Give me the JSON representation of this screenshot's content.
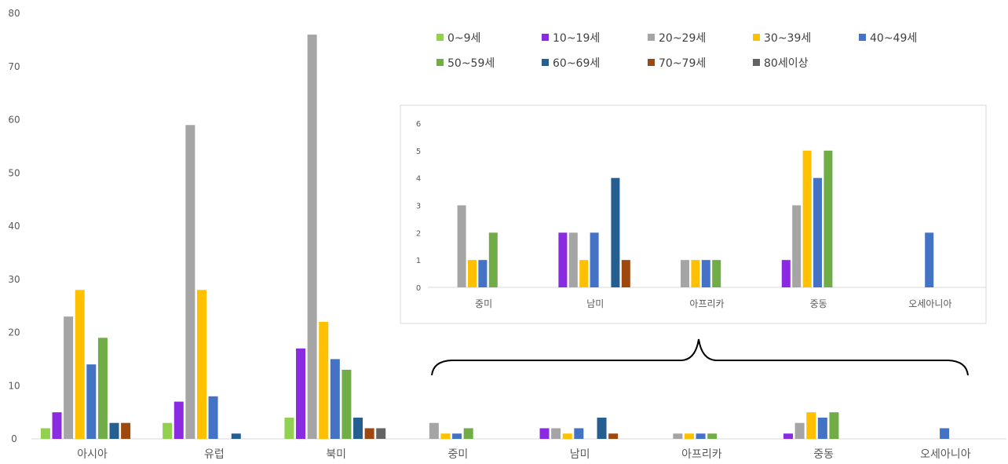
{
  "chart_data": [
    {
      "type": "bar",
      "ylim": [
        0,
        80
      ],
      "yticks": [
        "0",
        "10",
        "20",
        "30",
        "40",
        "50",
        "60",
        "70",
        "80"
      ],
      "categories": [
        "아시아",
        "유럽",
        "북미",
        "중미",
        "남미",
        "아프리카",
        "중동",
        "오세아니아"
      ],
      "grid": false,
      "legend_position": "top-right",
      "series": [
        {
          "name": "0~9세",
          "color": "#92d050",
          "values": [
            2,
            3,
            4,
            0,
            0,
            0,
            0,
            0
          ]
        },
        {
          "name": "10~19세",
          "color": "#8a2be2",
          "values": [
            5,
            7,
            17,
            0,
            2,
            0,
            1,
            0
          ]
        },
        {
          "name": "20~29세",
          "color": "#a5a5a5",
          "values": [
            23,
            59,
            76,
            3,
            2,
            1,
            3,
            0
          ]
        },
        {
          "name": "30~39세",
          "color": "#ffc000",
          "values": [
            28,
            28,
            22,
            1,
            1,
            1,
            5,
            0
          ]
        },
        {
          "name": "40~49세",
          "color": "#4472c4",
          "values": [
            14,
            8,
            15,
            1,
            2,
            1,
            4,
            2
          ]
        },
        {
          "name": "50~59세",
          "color": "#70ad47",
          "values": [
            19,
            0,
            13,
            2,
            0,
            1,
            5,
            0
          ]
        },
        {
          "name": "60~69세",
          "color": "#255e91",
          "values": [
            3,
            1,
            4,
            0,
            4,
            0,
            0,
            0
          ]
        },
        {
          "name": "70~79세",
          "color": "#9e480e",
          "values": [
            3,
            0,
            2,
            0,
            1,
            0,
            0,
            0
          ]
        },
        {
          "name": "80세이상",
          "color": "#636363",
          "values": [
            0,
            0,
            2,
            0,
            0,
            0,
            0,
            0
          ]
        }
      ]
    },
    {
      "type": "bar",
      "ylim": [
        0,
        6
      ],
      "yticks": [
        "0",
        "1",
        "2",
        "3",
        "4",
        "5",
        "6"
      ],
      "categories": [
        "중미",
        "남미",
        "아프리카",
        "중동",
        "오세아니아"
      ],
      "grid": false,
      "series": [
        {
          "name": "0~9세",
          "color": "#92d050",
          "values": [
            0,
            0,
            0,
            0,
            0
          ]
        },
        {
          "name": "10~19세",
          "color": "#8a2be2",
          "values": [
            0,
            2,
            0,
            1,
            0
          ]
        },
        {
          "name": "20~29세",
          "color": "#a5a5a5",
          "values": [
            3,
            2,
            1,
            3,
            0
          ]
        },
        {
          "name": "30~39세",
          "color": "#ffc000",
          "values": [
            1,
            1,
            1,
            5,
            0
          ]
        },
        {
          "name": "40~49세",
          "color": "#4472c4",
          "values": [
            1,
            2,
            1,
            4,
            2
          ]
        },
        {
          "name": "50~59세",
          "color": "#70ad47",
          "values": [
            2,
            0,
            1,
            5,
            0
          ]
        },
        {
          "name": "60~69세",
          "color": "#255e91",
          "values": [
            0,
            4,
            0,
            0,
            0
          ]
        },
        {
          "name": "70~79세",
          "color": "#9e480e",
          "values": [
            0,
            1,
            0,
            0,
            0
          ]
        },
        {
          "name": "80세이상",
          "color": "#636363",
          "values": [
            0,
            0,
            0,
            0,
            0
          ]
        }
      ]
    }
  ]
}
